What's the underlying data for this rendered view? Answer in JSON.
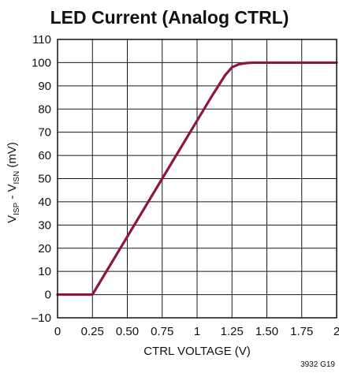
{
  "chart_data": {
    "type": "line",
    "title": "LED Current (Analog CTRL)",
    "xlabel": "CTRL VOLTAGE (V)",
    "ylabel": {
      "parts": [
        "V",
        "ISP",
        " - V",
        "ISN",
        " (mV)"
      ]
    },
    "xlim": [
      0,
      2
    ],
    "ylim": [
      -10,
      110
    ],
    "xticks": [
      0,
      0.25,
      0.5,
      0.75,
      1,
      1.25,
      1.5,
      1.75,
      2
    ],
    "xtick_labels": [
      "0",
      "0.25",
      "0.50",
      "0.75",
      "1",
      "1.25",
      "1.50",
      "1.75",
      "2"
    ],
    "yticks": [
      -10,
      0,
      10,
      20,
      30,
      40,
      50,
      60,
      70,
      80,
      90,
      100,
      110
    ],
    "ytick_labels": [
      "–10",
      "0",
      "10",
      "20",
      "30",
      "40",
      "50",
      "60",
      "70",
      "80",
      "90",
      "100",
      "110"
    ],
    "grid": true,
    "series": [
      {
        "color": "#8b1a3a",
        "x": [
          0,
          0.25,
          0.3,
          0.5,
          0.75,
          1.0,
          1.1,
          1.2,
          1.25,
          1.3,
          1.35,
          1.4,
          1.5,
          1.75,
          2.0
        ],
        "y": [
          0,
          0,
          5,
          25,
          50,
          75,
          85,
          94.5,
          98,
          99.3,
          99.8,
          100,
          100,
          100,
          100
        ]
      }
    ],
    "annotations": [
      "3932 G19"
    ]
  }
}
